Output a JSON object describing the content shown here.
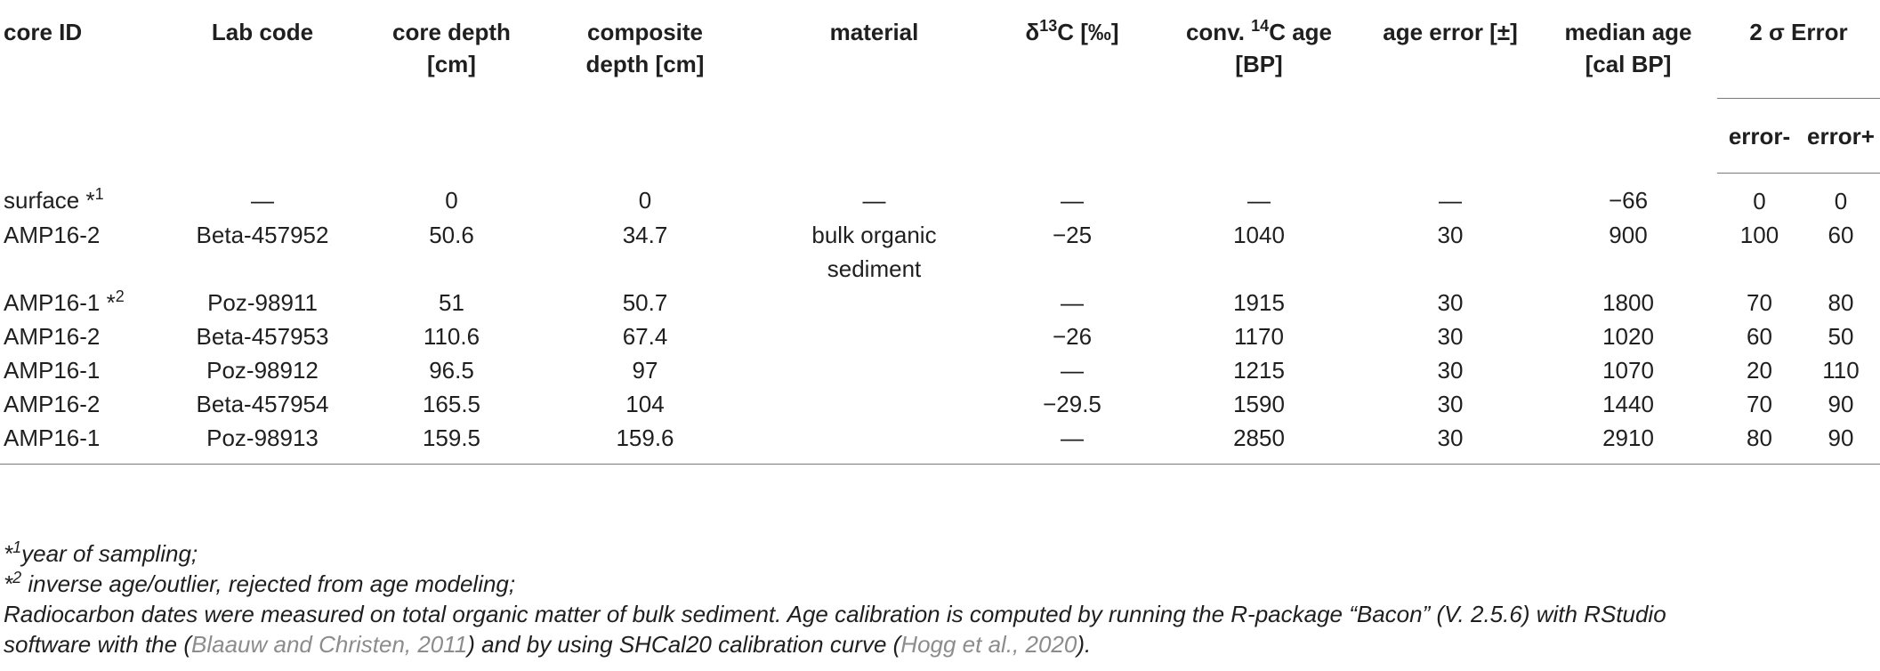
{
  "headers": {
    "core_id": "core ID",
    "lab_code": "Lab code",
    "core_depth_1": "core depth",
    "core_depth_2": "[cm]",
    "composite_depth_1": "composite",
    "composite_depth_2": "depth [cm]",
    "material": "material",
    "delta_prefix": "δ",
    "delta_sup": "13",
    "delta_suffix": "C [‰]",
    "conv_prefix": "conv. ",
    "conv_sup": "14",
    "conv_suffix": "C age",
    "conv_2": "[BP]",
    "age_error": "age error [±]",
    "median_age_1": "median age",
    "median_age_2": "[cal BP]",
    "sigma_error": "2 σ Error",
    "error_minus": "error-",
    "error_plus": "error+"
  },
  "rows": [
    {
      "core_id": "surface *",
      "sup": "1",
      "lab_code": "—",
      "core_depth": "0",
      "composite_depth": "0",
      "material": "—",
      "delta": "—",
      "conv_age": "—",
      "age_error": "—",
      "median_age": "−66",
      "error_minus": "0",
      "error_plus": "0"
    },
    {
      "core_id": "AMP16-2",
      "sup": "",
      "lab_code": "Beta-457952",
      "core_depth": "50.6",
      "composite_depth": "34.7",
      "material": "bulk organic",
      "material_2": "sediment",
      "delta": "−25",
      "conv_age": "1040",
      "age_error": "30",
      "median_age": "900",
      "error_minus": "100",
      "error_plus": "60"
    },
    {
      "core_id": "AMP16-1 *",
      "sup": "2",
      "lab_code": "Poz-98911",
      "core_depth": "51",
      "composite_depth": "50.7",
      "material": "",
      "delta": "—",
      "conv_age": "1915",
      "age_error": "30",
      "median_age": "1800",
      "error_minus": "70",
      "error_plus": "80"
    },
    {
      "core_id": "AMP16-2",
      "sup": "",
      "lab_code": "Beta-457953",
      "core_depth": "110.6",
      "composite_depth": "67.4",
      "material": "",
      "delta": "−26",
      "conv_age": "1170",
      "age_error": "30",
      "median_age": "1020",
      "error_minus": "60",
      "error_plus": "50"
    },
    {
      "core_id": "AMP16-1",
      "sup": "",
      "lab_code": "Poz-98912",
      "core_depth": "96.5",
      "composite_depth": "97",
      "material": "",
      "delta": "—",
      "conv_age": "1215",
      "age_error": "30",
      "median_age": "1070",
      "error_minus": "20",
      "error_plus": "110"
    },
    {
      "core_id": "AMP16-2",
      "sup": "",
      "lab_code": "Beta-457954",
      "core_depth": "165.5",
      "composite_depth": "104",
      "material": "",
      "delta": "−29.5",
      "conv_age": "1590",
      "age_error": "30",
      "median_age": "1440",
      "error_minus": "70",
      "error_plus": "90"
    },
    {
      "core_id": "AMP16-1",
      "sup": "",
      "lab_code": "Poz-98913",
      "core_depth": "159.5",
      "composite_depth": "159.6",
      "material": "",
      "delta": "—",
      "conv_age": "2850",
      "age_error": "30",
      "median_age": "2910",
      "error_minus": "80",
      "error_plus": "90"
    }
  ],
  "footnotes": {
    "fn1_mark": "*",
    "fn1_sup": "1",
    "fn1_text": "year of sampling;",
    "fn2_mark": "*",
    "fn2_sup": "2",
    "fn2_text": " inverse age/outlier, rejected from age modeling;",
    "note_part1": "Radiocarbon dates were measured on total organic matter of bulk sediment. Age calibration is computed by running the R-package “Bacon” (V. 2.5.6) with RStudio",
    "note_part2a": "software with the (",
    "cite1": "Blaauw and Christen, 2011",
    "note_part2b": ") and by using SHCal20 calibration curve (",
    "cite2": "Hogg et al., 2020",
    "note_part2c": ")."
  },
  "colors": {
    "text": "#1f1f1f",
    "citation": "#8c8c8c",
    "rule": "#7a7a7a"
  }
}
